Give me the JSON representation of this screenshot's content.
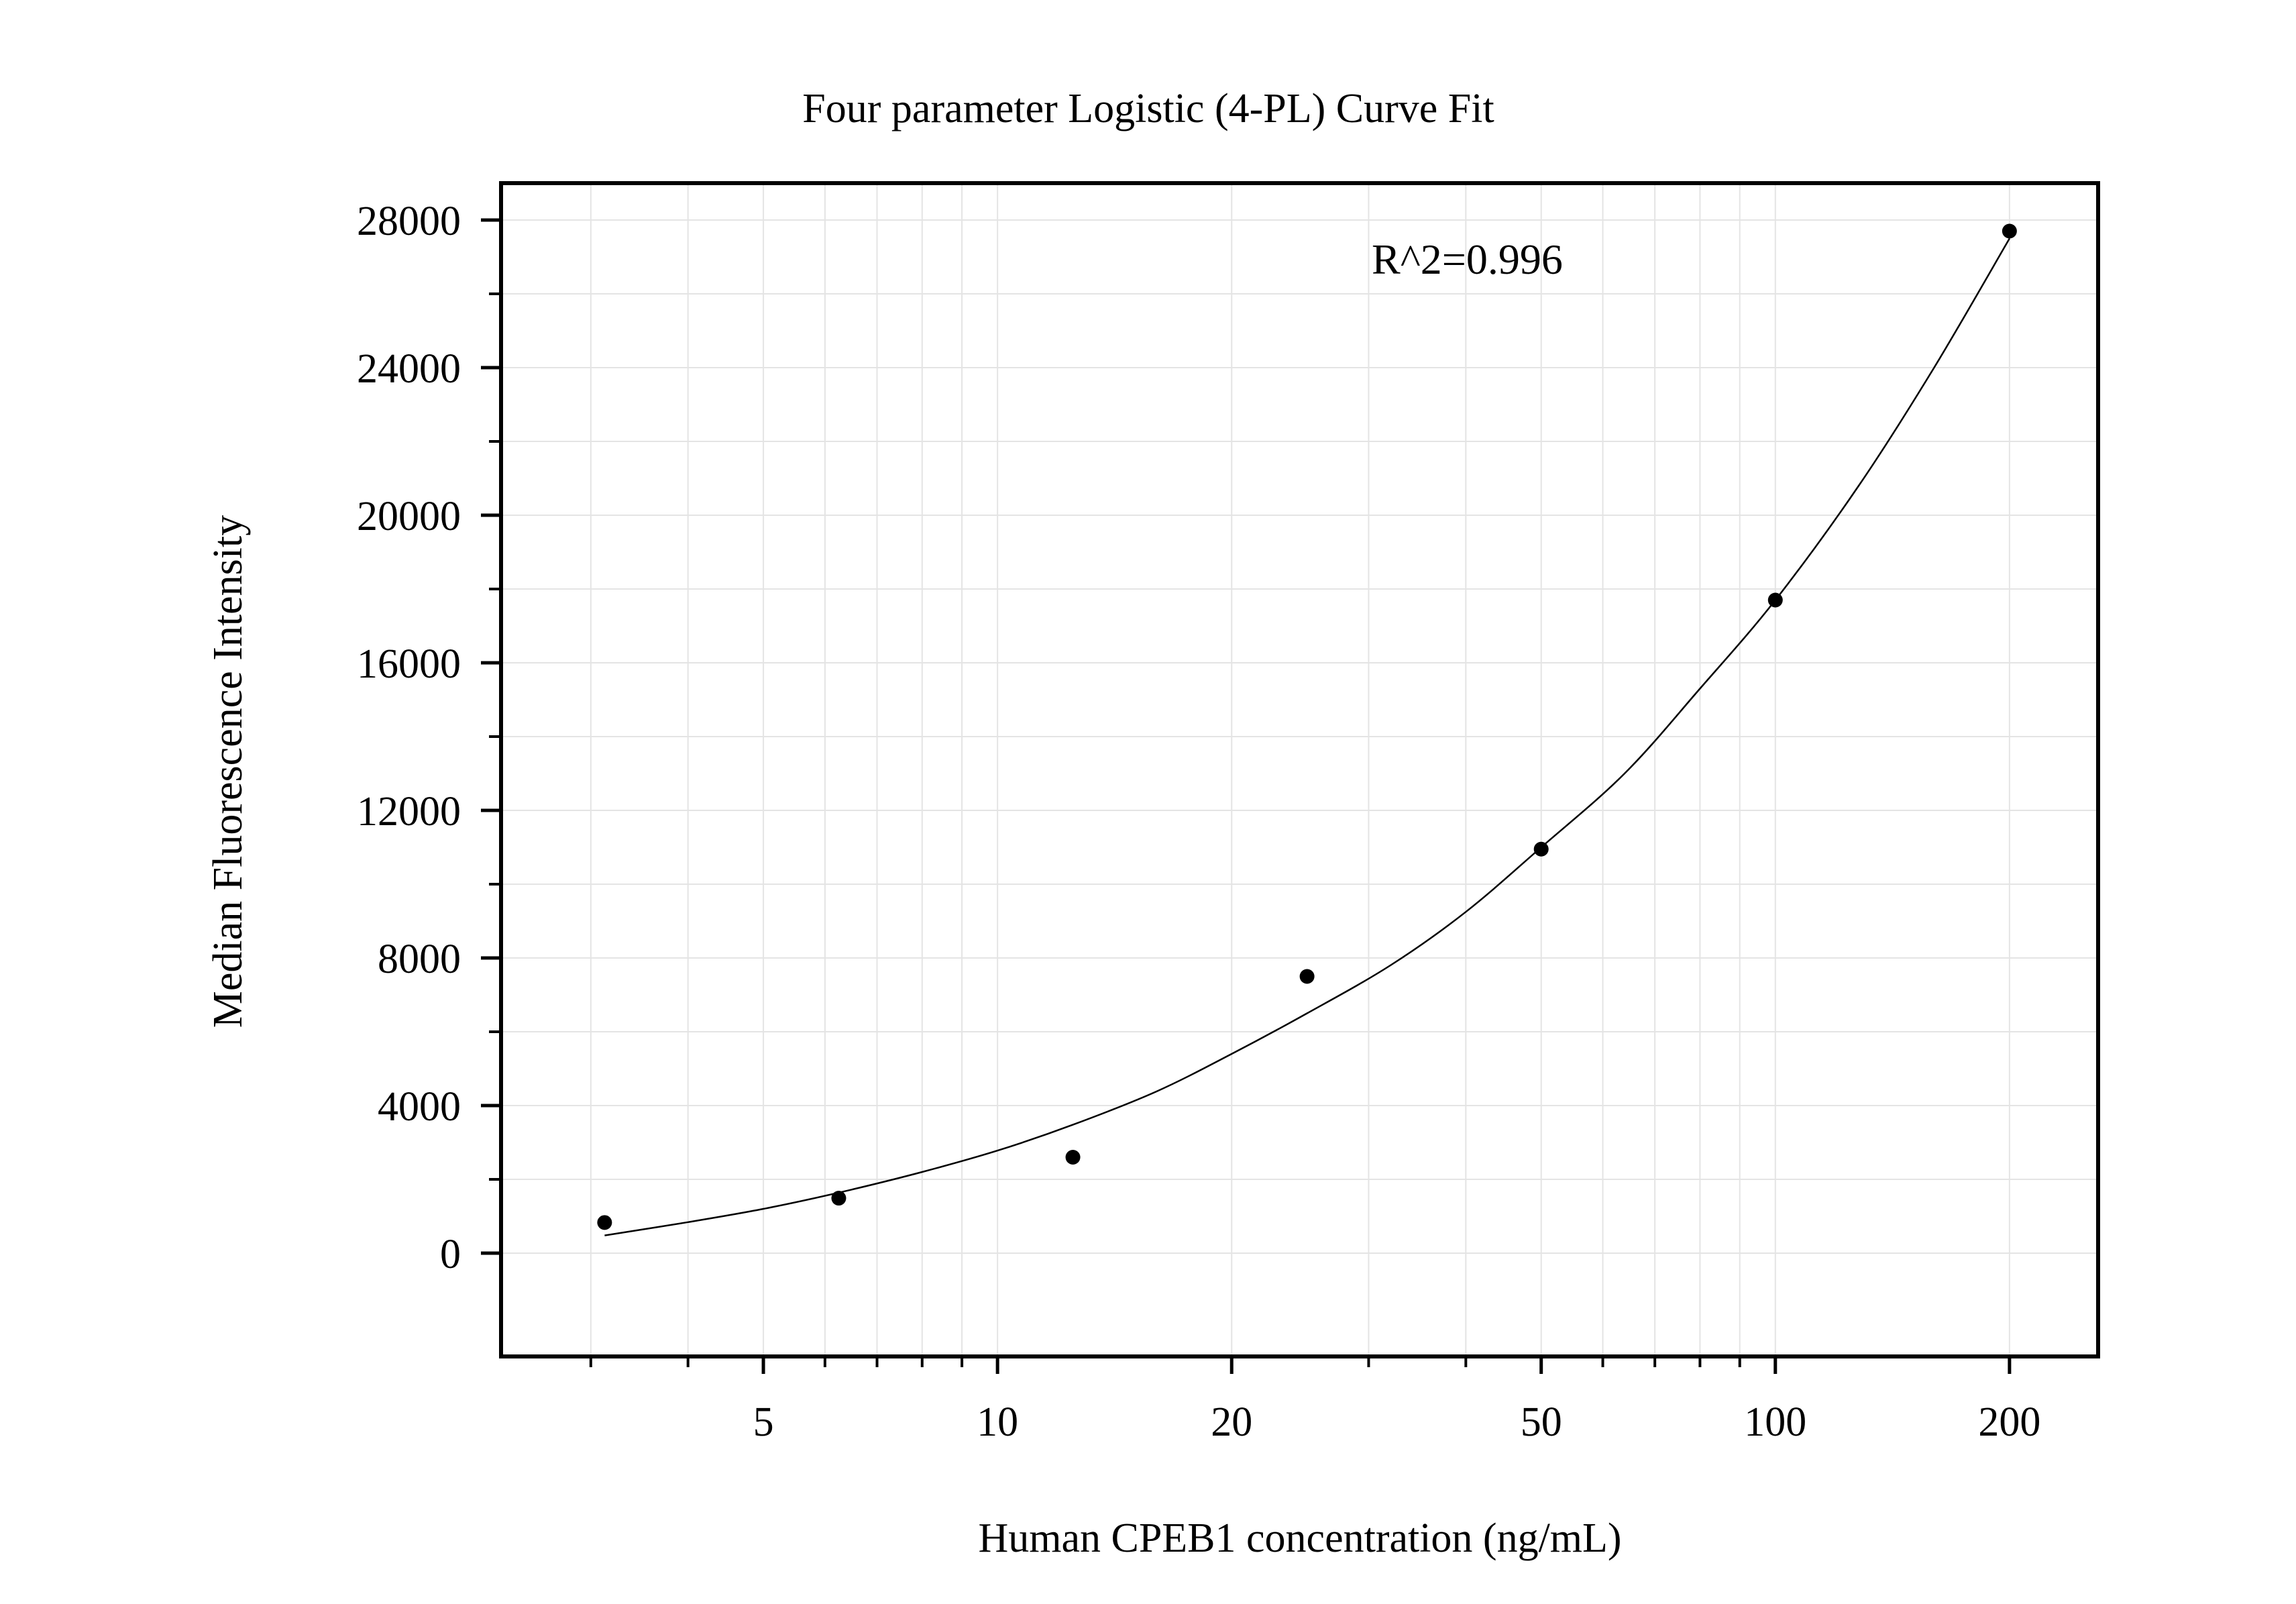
{
  "chart_data": {
    "type": "scatter",
    "title": "Four parameter Logistic (4-PL) Curve Fit",
    "xlabel": "Human CPEB1 concentration (ng/mL)",
    "ylabel": "Median Fluorescence Intensity",
    "annotation": "R^2=0.996",
    "x_scale": "log",
    "xlim": [
      2.3,
      260
    ],
    "ylim": [
      -2800,
      29000
    ],
    "x_ticks": [
      5,
      10,
      20,
      50,
      100,
      200
    ],
    "x_tick_labels": [
      "5",
      "10",
      "20",
      "50",
      "100",
      "200"
    ],
    "x_minor_ticks": [
      3,
      4,
      6,
      7,
      8,
      9,
      30,
      40,
      60,
      70,
      80,
      90
    ],
    "y_ticks": [
      0,
      4000,
      8000,
      12000,
      16000,
      20000,
      24000,
      28000
    ],
    "y_tick_labels": [
      "0",
      "4000",
      "8000",
      "12000",
      "16000",
      "20000",
      "24000",
      "28000"
    ],
    "y_minor_ticks": [
      2000,
      6000,
      10000,
      14000,
      18000,
      22000,
      26000
    ],
    "grid": true,
    "points": [
      {
        "x": 3.125,
        "y": 830
      },
      {
        "x": 6.25,
        "y": 1490
      },
      {
        "x": 12.5,
        "y": 2600
      },
      {
        "x": 25,
        "y": 7500
      },
      {
        "x": 50,
        "y": 10950
      },
      {
        "x": 100,
        "y": 17700
      },
      {
        "x": 200,
        "y": 27700
      }
    ],
    "fit_curve": {
      "x": [
        3.125,
        4,
        5,
        6.25,
        8,
        10,
        12.5,
        16,
        20,
        25,
        32,
        40,
        50,
        64,
        80,
        100,
        128,
        160,
        200
      ],
      "y": [
        480,
        840,
        1200,
        1640,
        2200,
        2780,
        3480,
        4380,
        5400,
        6500,
        7800,
        9250,
        11000,
        13000,
        15300,
        17700,
        20800,
        24000,
        27500
      ]
    }
  }
}
